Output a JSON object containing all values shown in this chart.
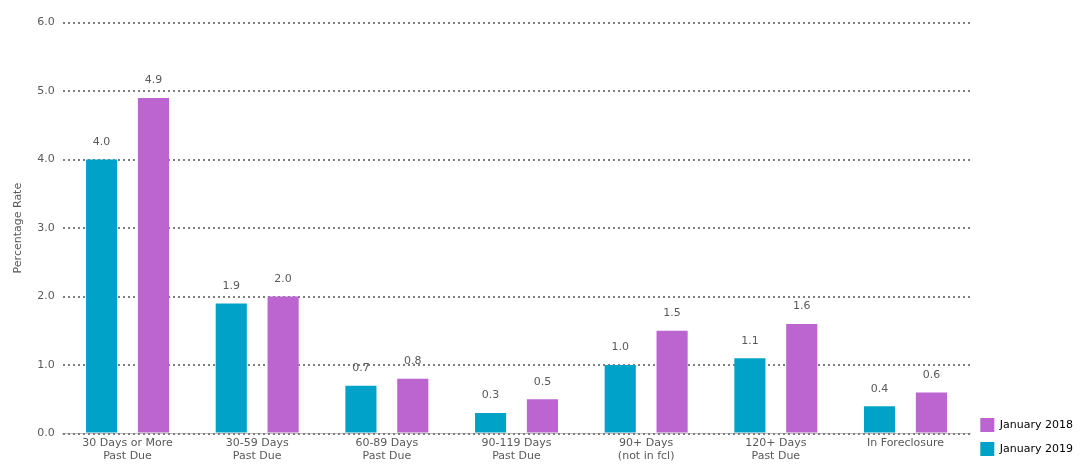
{
  "chart_data": {
    "type": "bar",
    "ylabel": "Percentage Rate",
    "categories": [
      "30 Days or More\nPast Due",
      "30-59 Days\nPast Due",
      "60-89 Days\nPast Due",
      "90-119 Days\nPast Due",
      "90+ Days\n(not in fcl)",
      "120+ Days\nPast Due",
      "In Foreclosure"
    ],
    "series": [
      {
        "name": "January 2019",
        "color": "#00a3c7",
        "values": [
          4.0,
          1.9,
          0.7,
          0.3,
          1.0,
          1.1,
          0.4
        ],
        "value_labels": [
          "4.0",
          "1.9",
          "0.7",
          "0.3",
          "1.0",
          "1.1",
          "0.4"
        ]
      },
      {
        "name": "January 2018",
        "color": "#bc64d0",
        "values": [
          4.9,
          2.0,
          0.8,
          0.5,
          1.5,
          1.6,
          0.6
        ],
        "value_labels": [
          "4.9",
          "2.0",
          "0.8",
          "0.5",
          "1.5",
          "1.6",
          "0.6"
        ]
      }
    ],
    "ylim": [
      0,
      6
    ],
    "yticks": [
      {
        "value": 0,
        "label": "0.0"
      },
      {
        "value": 1,
        "label": "1.0"
      },
      {
        "value": 2,
        "label": "2.0"
      },
      {
        "value": 3,
        "label": "3.0"
      },
      {
        "value": 4,
        "label": "4.0"
      },
      {
        "value": 5,
        "label": "5.0"
      },
      {
        "value": 6,
        "label": "6.0"
      }
    ],
    "grid": "y",
    "legend": "bottom right"
  }
}
